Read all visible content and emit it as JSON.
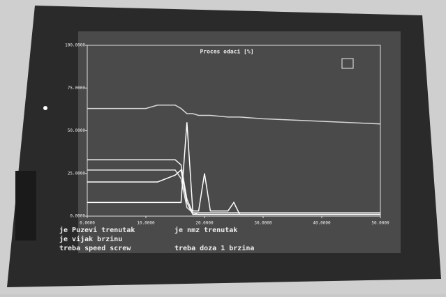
{
  "chart_data": {
    "type": "line",
    "title": "Proces odaci [%]",
    "x": [
      0,
      10,
      12,
      15,
      16,
      17,
      18,
      19,
      20,
      21,
      24,
      25,
      26,
      30,
      50
    ],
    "series": [
      {
        "color": "#d8d8d8",
        "values": [
          63,
          63,
          65,
          65,
          63,
          60,
          60,
          59,
          59,
          59,
          58,
          58,
          58,
          57,
          54
        ]
      },
      {
        "color": "#f0f0f0",
        "values": [
          33,
          33,
          33,
          33,
          30,
          10,
          2,
          2,
          2,
          2,
          2,
          2,
          2,
          2,
          2
        ]
      },
      {
        "color": "#e6e6e6",
        "values": [
          27,
          27,
          27,
          27,
          22,
          5,
          2,
          1,
          1,
          1,
          1,
          1,
          1,
          1,
          1
        ]
      },
      {
        "color": "#ffffff",
        "values": [
          20,
          20,
          20,
          24,
          27,
          8,
          1,
          1,
          1,
          1,
          1,
          1,
          1,
          1,
          1
        ]
      },
      {
        "color": "#ffffff",
        "values": [
          8,
          8,
          8,
          8,
          8,
          55,
          3,
          3,
          25,
          3,
          3,
          8,
          1,
          1,
          1
        ]
      }
    ],
    "xlim": [
      0,
      50
    ],
    "xticks": [
      {
        "value": 0,
        "label": "0.0000"
      },
      {
        "value": 10,
        "label": "10.0000"
      },
      {
        "value": 20,
        "label": "20.0000"
      },
      {
        "value": 30,
        "label": "30.0000"
      },
      {
        "value": 40,
        "label": "40.0000"
      },
      {
        "value": 50,
        "label": "50.0000"
      }
    ],
    "ylim": [
      0,
      100
    ],
    "yticks": [
      {
        "value": 0,
        "label": "0.0000"
      },
      {
        "value": 25,
        "label": "25.0000"
      },
      {
        "value": 50,
        "label": "50.0000"
      },
      {
        "value": 75,
        "label": "75.0000"
      },
      {
        "value": 100,
        "label": "100.0000"
      }
    ],
    "grid": false
  },
  "status_messages": {
    "left": [
      "je Puzevi trenutak",
      "je vijak brzinu",
      "treba speed screw"
    ],
    "middle": [
      "je nmz trenutak",
      "treba doza 1 brzina"
    ]
  }
}
